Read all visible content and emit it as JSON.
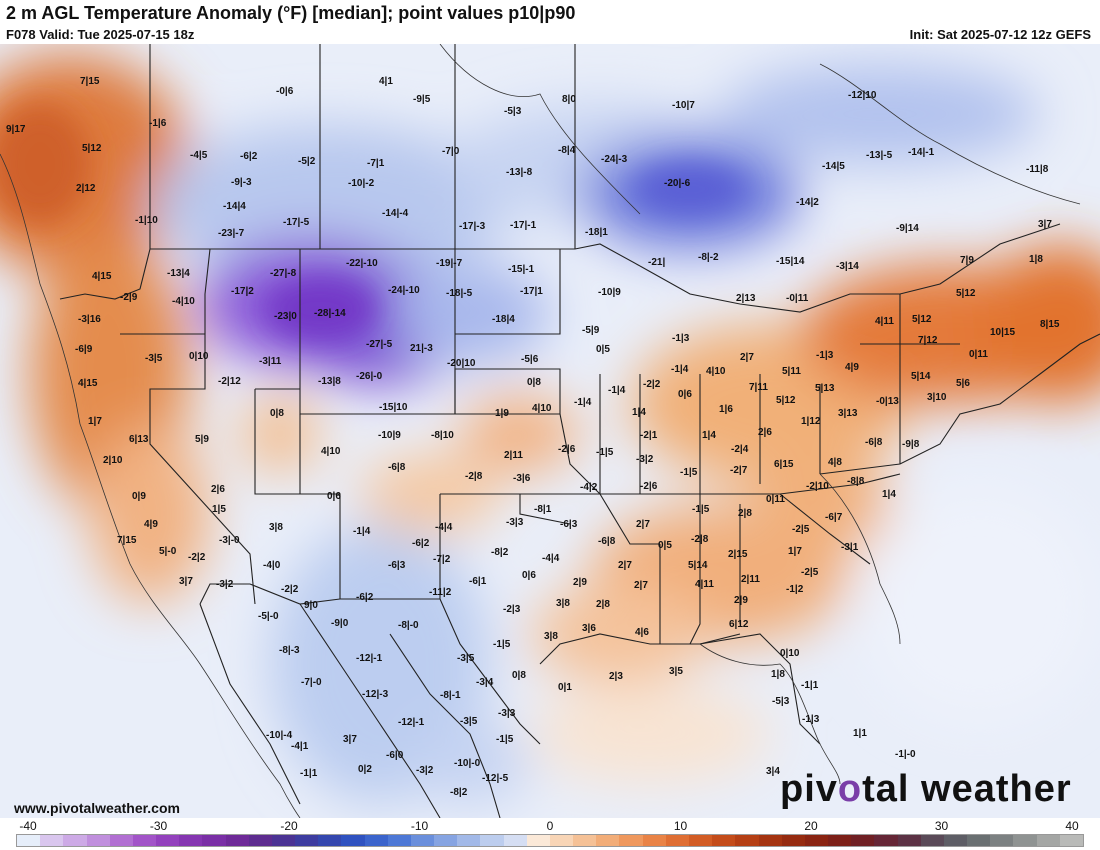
{
  "header": {
    "title": "2 m AGL Temperature Anomaly (°F) [median]; point values p10|p90",
    "valid": "F078 Valid: Tue 2025-07-15 18z",
    "init": "Init: Sat 2025-07-12 12z GEFS"
  },
  "footer": {
    "site": "www.pivotalweather.com",
    "brand_prefix": "piv",
    "brand_mid": "o",
    "brand_suffix": "tal weather"
  },
  "colorbar": {
    "ticks": [
      "-40",
      "-30",
      "-20",
      "-10",
      "0",
      "10",
      "20",
      "30",
      "40"
    ],
    "colors": [
      "#e6eefa",
      "#d9c6ee",
      "#cdaae6",
      "#c08fdd",
      "#b16fd2",
      "#a254c8",
      "#9341bd",
      "#8536b1",
      "#7a2fa6",
      "#6e2a98",
      "#5d2c8f",
      "#4b3394",
      "#3d3ca0",
      "#3447ae",
      "#2f52c0",
      "#3b64cc",
      "#4d78d6",
      "#6a8fdc",
      "#86a4e2",
      "#a2b9e8",
      "#bccdee",
      "#d5def3",
      "#fbe9d8",
      "#f8d5b6",
      "#f5c196",
      "#f2ad78",
      "#ef985d",
      "#e98346",
      "#df6e33",
      "#d25c24",
      "#c44c1a",
      "#b53f14",
      "#a53411",
      "#962b10",
      "#8a2412",
      "#7d2018",
      "#702024",
      "#652636",
      "#5c3245",
      "#5a4a58",
      "#5e5e66",
      "#6a7072",
      "#7c8182",
      "#8f9392",
      "#a4a6a4",
      "#b9bab8"
    ]
  },
  "map_labels": [
    [
      "7|15",
      "94",
      "82"
    ],
    [
      "-0|6",
      "290",
      "92"
    ],
    [
      "4|1",
      "393",
      "82"
    ],
    [
      "-9|5",
      "427",
      "100"
    ],
    [
      "8|0",
      "576",
      "100"
    ],
    [
      "-5|3",
      "518",
      "112"
    ],
    [
      "-10|7",
      "686",
      "106"
    ],
    [
      "-12|10",
      "862",
      "96"
    ],
    [
      "9|17",
      "20",
      "130"
    ],
    [
      "-1|6",
      "163",
      "124"
    ],
    [
      "5|12",
      "96",
      "149"
    ],
    [
      "-4|5",
      "204",
      "156"
    ],
    [
      "-6|2",
      "254",
      "157"
    ],
    [
      "-5|2",
      "312",
      "162"
    ],
    [
      "-7|1",
      "381",
      "164"
    ],
    [
      "-7|0",
      "456",
      "152"
    ],
    [
      "-8|4",
      "572",
      "151"
    ],
    [
      "-24|-3",
      "615",
      "160"
    ],
    [
      "-14|5",
      "836",
      "167"
    ],
    [
      "-13|-5",
      "880",
      "156"
    ],
    [
      "-14|-1",
      "922",
      "153"
    ],
    [
      "-11|8",
      "1040",
      "170"
    ],
    [
      "2|12",
      "90",
      "189"
    ],
    [
      "-9|-3",
      "245",
      "183"
    ],
    [
      "-10|-2",
      "362",
      "184"
    ],
    [
      "-13|-8",
      "520",
      "173"
    ],
    [
      "-20|-6",
      "678",
      "184"
    ],
    [
      "-14|4",
      "237",
      "207"
    ],
    [
      "-14|2",
      "810",
      "203"
    ],
    [
      "-1|10",
      "149",
      "221"
    ],
    [
      "-17|-5",
      "297",
      "223"
    ],
    [
      "-14|-4",
      "396",
      "214"
    ],
    [
      "-17|-3",
      "473",
      "227"
    ],
    [
      "-17|-1",
      "524",
      "226"
    ],
    [
      "-18|1",
      "599",
      "233"
    ],
    [
      "-9|14",
      "910",
      "229"
    ],
    [
      "3|7",
      "1052",
      "225"
    ],
    [
      "-23|-7",
      "232",
      "234"
    ],
    [
      "4|15",
      "106",
      "277"
    ],
    [
      "-13|4",
      "181",
      "274"
    ],
    [
      "-27|-8",
      "284",
      "274"
    ],
    [
      "-22|-10",
      "360",
      "264"
    ],
    [
      "-19|-7",
      "450",
      "264"
    ],
    [
      "-15|-1",
      "522",
      "270"
    ],
    [
      "-21|",
      "662",
      "263"
    ],
    [
      "-8|-2",
      "712",
      "258"
    ],
    [
      "-15|14",
      "790",
      "262"
    ],
    [
      "-3|14",
      "850",
      "267"
    ],
    [
      "7|9",
      "974",
      "261"
    ],
    [
      "1|8",
      "1043",
      "260"
    ],
    [
      "-2|9",
      "134",
      "298"
    ],
    [
      "-4|10",
      "186",
      "302"
    ],
    [
      "-17|2",
      "245",
      "292"
    ],
    [
      "-24|-10",
      "402",
      "291"
    ],
    [
      "-18|-5",
      "460",
      "294"
    ],
    [
      "-17|1",
      "534",
      "292"
    ],
    [
      "-10|9",
      "612",
      "293"
    ],
    [
      "2|13",
      "750",
      "299"
    ],
    [
      "-0|11",
      "800",
      "299"
    ],
    [
      "5|12",
      "970",
      "294"
    ],
    [
      "-3|16",
      "92",
      "320"
    ],
    [
      "-23|0",
      "288",
      "317"
    ],
    [
      "-28|-14",
      "328",
      "314"
    ],
    [
      "-18|4",
      "506",
      "320"
    ],
    [
      "-5|9",
      "596",
      "331"
    ],
    [
      "4|11",
      "889",
      "322"
    ],
    [
      "5|12",
      "926",
      "320"
    ],
    [
      "10|15",
      "1004",
      "333"
    ],
    [
      "8|15",
      "1054",
      "325"
    ],
    [
      "-6|9",
      "89",
      "350"
    ],
    [
      "-3|5",
      "159",
      "359"
    ],
    [
      "0|10",
      "203",
      "357"
    ],
    [
      "-27|-5",
      "380",
      "345"
    ],
    [
      "21|-3",
      "424",
      "349"
    ],
    [
      "-1|3",
      "686",
      "339"
    ],
    [
      "0|5",
      "610",
      "350"
    ],
    [
      "7|12",
      "932",
      "341"
    ],
    [
      "4|15",
      "92",
      "384"
    ],
    [
      "-3|11",
      "273",
      "362"
    ],
    [
      "-20|10",
      "461",
      "364"
    ],
    [
      "-5|6",
      "535",
      "360"
    ],
    [
      "2|7",
      "754",
      "358"
    ],
    [
      "-1|3",
      "830",
      "356"
    ],
    [
      "-1|4",
      "685",
      "370"
    ],
    [
      "4|10",
      "720",
      "372"
    ],
    [
      "5|11",
      "796",
      "372"
    ],
    [
      "4|9",
      "859",
      "368"
    ],
    [
      "0|11",
      "983",
      "355"
    ],
    [
      "-2|12",
      "232",
      "382"
    ],
    [
      "-13|8",
      "332",
      "382"
    ],
    [
      "-26|-0",
      "370",
      "377"
    ],
    [
      "0|8",
      "541",
      "383"
    ],
    [
      "-2|2",
      "657",
      "385"
    ],
    [
      "-1|4",
      "622",
      "391"
    ],
    [
      "5|13",
      "829",
      "389"
    ],
    [
      "7|11",
      "763",
      "388"
    ],
    [
      "5|14",
      "925",
      "377"
    ],
    [
      "5|6",
      "970",
      "384"
    ],
    [
      "-1|4",
      "588",
      "403"
    ],
    [
      "0|6",
      "692",
      "395"
    ],
    [
      "-15|10",
      "393",
      "408"
    ],
    [
      "4|10",
      "546",
      "409"
    ],
    [
      "1|9",
      "509",
      "414"
    ],
    [
      "1|6",
      "733",
      "410"
    ],
    [
      "5|12",
      "790",
      "401"
    ],
    [
      "3|13",
      "852",
      "414"
    ],
    [
      "-0|13",
      "890",
      "402"
    ],
    [
      "3|10",
      "941",
      "398"
    ],
    [
      "1|7",
      "102",
      "422"
    ],
    [
      "0|8",
      "284",
      "414"
    ],
    [
      "1|4",
      "646",
      "413"
    ],
    [
      "1|12",
      "815",
      "422"
    ],
    [
      "6|13",
      "143",
      "440"
    ],
    [
      "5|9",
      "209",
      "440"
    ],
    [
      "-10|9",
      "392",
      "436"
    ],
    [
      "-8|10",
      "445",
      "436"
    ],
    [
      "-2|1",
      "654",
      "436"
    ],
    [
      "1|4",
      "716",
      "436"
    ],
    [
      "2|6",
      "772",
      "433"
    ],
    [
      "-6|8",
      "879",
      "443"
    ],
    [
      "-9|8",
      "916",
      "445"
    ],
    [
      "2|10",
      "117",
      "461"
    ],
    [
      "4|10",
      "335",
      "452"
    ],
    [
      "2|11",
      "518",
      "456"
    ],
    [
      "-2|6",
      "572",
      "450"
    ],
    [
      "-1|5",
      "610",
      "453"
    ],
    [
      "-3|2",
      "650",
      "460"
    ],
    [
      "-2|4",
      "745",
      "450"
    ],
    [
      "6|15",
      "788",
      "465"
    ],
    [
      "4|8",
      "842",
      "463"
    ],
    [
      "-6|8",
      "402",
      "468"
    ],
    [
      "-2|8",
      "479",
      "477"
    ],
    [
      "-3|6",
      "527",
      "479"
    ],
    [
      "-1|5",
      "694",
      "473"
    ],
    [
      "-2|7",
      "744",
      "471"
    ],
    [
      "-8|8",
      "861",
      "482"
    ],
    [
      "0|9",
      "146",
      "497"
    ],
    [
      "2|6",
      "225",
      "490"
    ],
    [
      "0|6",
      "341",
      "497"
    ],
    [
      "-4|2",
      "594",
      "488"
    ],
    [
      "-2|6",
      "654",
      "487"
    ],
    [
      "-2|10",
      "820",
      "487"
    ],
    [
      "1|4",
      "896",
      "495"
    ],
    [
      "0|11",
      "780",
      "500"
    ],
    [
      "1|5",
      "226",
      "510"
    ],
    [
      "-8|1",
      "548",
      "510"
    ],
    [
      "-1|5",
      "706",
      "510"
    ],
    [
      "2|8",
      "752",
      "514"
    ],
    [
      "-6|7",
      "839",
      "518"
    ],
    [
      "4|9",
      "158",
      "525"
    ],
    [
      "3|8",
      "283",
      "528"
    ],
    [
      "-1|4",
      "367",
      "532"
    ],
    [
      "-4|4",
      "449",
      "528"
    ],
    [
      "-3|3",
      "520",
      "523"
    ],
    [
      "-6|3",
      "574",
      "525"
    ],
    [
      "2|7",
      "650",
      "525"
    ],
    [
      "-2|5",
      "806",
      "530"
    ],
    [
      "7|15",
      "131",
      "541"
    ],
    [
      "-3|-0",
      "233",
      "541"
    ],
    [
      "-6|2",
      "426",
      "544"
    ],
    [
      "-6|8",
      "612",
      "542"
    ],
    [
      "-2|8",
      "705",
      "540"
    ],
    [
      "2|15",
      "742",
      "555"
    ],
    [
      "1|7",
      "802",
      "552"
    ],
    [
      "-3|1",
      "855",
      "548"
    ],
    [
      "5|-0",
      "173",
      "552"
    ],
    [
      "-2|2",
      "202",
      "558"
    ],
    [
      "-7|2",
      "447",
      "560"
    ],
    [
      "-8|2",
      "505",
      "553"
    ],
    [
      "-4|4",
      "556",
      "559"
    ],
    [
      "0|5",
      "672",
      "546"
    ],
    [
      "5|14",
      "702",
      "566"
    ],
    [
      "2|7",
      "632",
      "566"
    ],
    [
      "-4|0",
      "277",
      "566"
    ],
    [
      "-6|3",
      "402",
      "566"
    ],
    [
      "-2|5",
      "815",
      "573"
    ],
    [
      "2|11",
      "755",
      "580"
    ],
    [
      "3|7",
      "193",
      "582"
    ],
    [
      "-3|2",
      "230",
      "585"
    ],
    [
      "-2|2",
      "295",
      "590"
    ],
    [
      "-6|1",
      "483",
      "582"
    ],
    [
      "0|6",
      "536",
      "576"
    ],
    [
      "2|9",
      "587",
      "583"
    ],
    [
      "2|7",
      "648",
      "586"
    ],
    [
      "4|11",
      "709",
      "585"
    ],
    [
      "-1|2",
      "800",
      "590"
    ],
    [
      "-11|2",
      "443",
      "593"
    ],
    [
      "-6|2",
      "370",
      "598"
    ],
    [
      "9|0",
      "318",
      "606"
    ],
    [
      "3|8",
      "570",
      "604"
    ],
    [
      "2|8",
      "610",
      "605"
    ],
    [
      "2|9",
      "748",
      "601"
    ],
    [
      "-2|3",
      "517",
      "610"
    ],
    [
      "-5|-0",
      "272",
      "617"
    ],
    [
      "-9|0",
      "345",
      "624"
    ],
    [
      "-8|-0",
      "412",
      "626"
    ],
    [
      "3|6",
      "596",
      "629"
    ],
    [
      "4|6",
      "649",
      "633"
    ],
    [
      "6|12",
      "743",
      "625"
    ],
    [
      "3|8",
      "558",
      "637"
    ],
    [
      "-1|5",
      "507",
      "645"
    ],
    [
      "-8|-3",
      "293",
      "651"
    ],
    [
      "-12|-1",
      "370",
      "659"
    ],
    [
      "-3|5",
      "471",
      "659"
    ],
    [
      "0|10",
      "794",
      "654"
    ],
    [
      "-7|-0",
      "315",
      "683"
    ],
    [
      "-3|4",
      "490",
      "683"
    ],
    [
      "0|8",
      "526",
      "676"
    ],
    [
      "0|1",
      "572",
      "688"
    ],
    [
      "2|3",
      "623",
      "677"
    ],
    [
      "3|5",
      "683",
      "672"
    ],
    [
      "1|8",
      "785",
      "675"
    ],
    [
      "-1|1",
      "815",
      "686"
    ],
    [
      "-12|-3",
      "376",
      "695"
    ],
    [
      "-8|-1",
      "454",
      "696"
    ],
    [
      "-5|3",
      "786",
      "702"
    ],
    [
      "-3|3",
      "512",
      "714"
    ],
    [
      "-12|-1",
      "412",
      "723"
    ],
    [
      "-3|5",
      "474",
      "722"
    ],
    [
      "-1|3",
      "816",
      "720"
    ],
    [
      "-10|-4",
      "280",
      "736"
    ],
    [
      "3|7",
      "357",
      "740"
    ],
    [
      "-1|5",
      "510",
      "740"
    ],
    [
      "1|1",
      "867",
      "734"
    ],
    [
      "-4|1",
      "305",
      "747"
    ],
    [
      "-6|0",
      "400",
      "756"
    ],
    [
      "-10|-0",
      "468",
      "764"
    ],
    [
      "-1|-0",
      "909",
      "755"
    ],
    [
      "-1|1",
      "314",
      "774"
    ],
    [
      "0|2",
      "372",
      "770"
    ],
    [
      "-3|2",
      "430",
      "771"
    ],
    [
      "-12|-5",
      "496",
      "779"
    ],
    [
      "3|4",
      "780",
      "772"
    ],
    [
      "-8|2",
      "464",
      "793"
    ]
  ]
}
